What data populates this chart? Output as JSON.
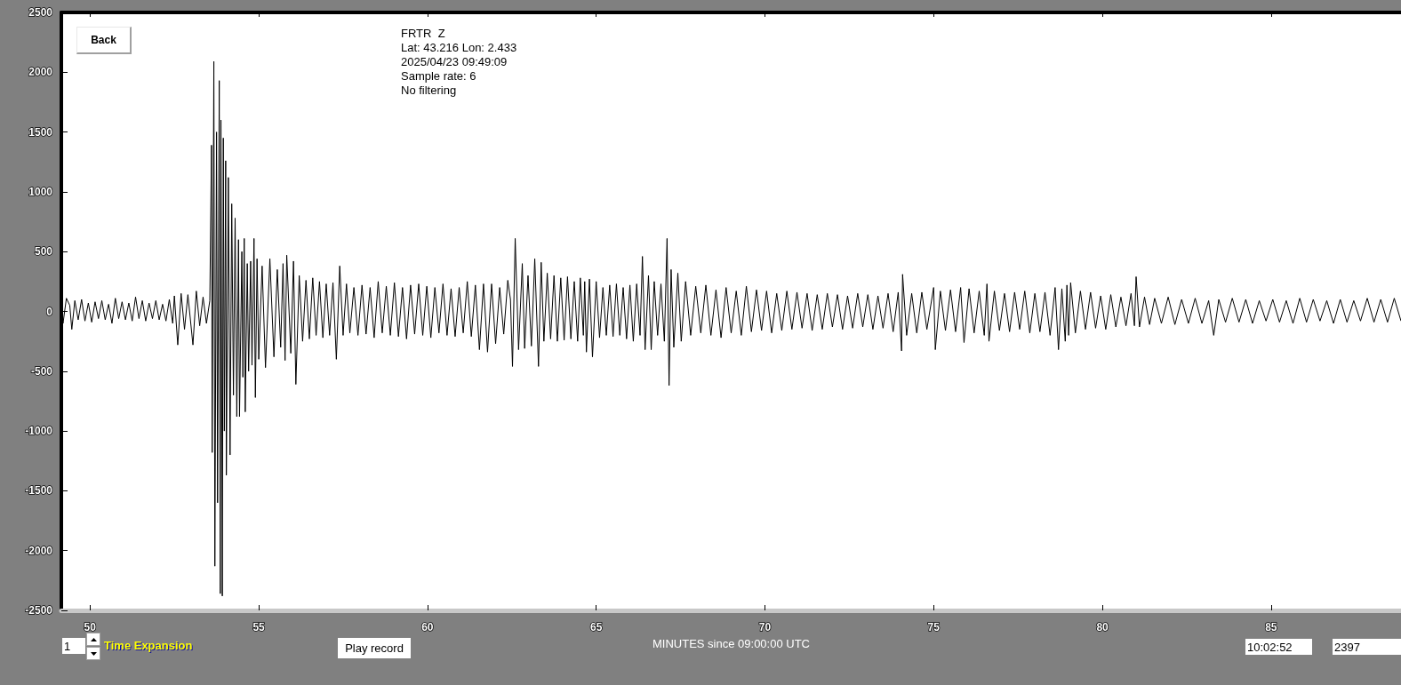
{
  "chart_data": {
    "type": "line",
    "title": "FRTR  Z",
    "xlabel": "MINUTES since 09:00:00 UTC",
    "annotations": [
      "Lat: 43.216 Lon: 2.433",
      "2025/04/23 09:49:09",
      "Sample rate: 6",
      "No filtering",
      "Back",
      "1",
      "Time Expansion",
      "Play record",
      "10:02:52",
      "2397"
    ],
    "color": "#000000",
    "xlim": [
      49.15,
      88.85
    ],
    "ylim": [
      -2500,
      2500
    ],
    "xticks": [
      50,
      55,
      60,
      65,
      70,
      75,
      80,
      85
    ],
    "yticks": [
      -2500,
      -2000,
      -1500,
      -1000,
      -500,
      0,
      500,
      1000,
      1500,
      2000,
      2500
    ],
    "x": [
      49.15,
      49.2,
      49.3,
      49.4,
      49.46,
      49.55,
      49.65,
      49.75,
      49.85,
      49.95,
      50.05,
      50.15,
      50.25,
      50.35,
      50.45,
      50.55,
      50.65,
      50.75,
      50.85,
      50.95,
      51.05,
      51.15,
      51.25,
      51.35,
      51.45,
      51.55,
      51.65,
      51.75,
      51.85,
      51.95,
      52.05,
      52.15,
      52.25,
      52.35,
      52.45,
      52.5,
      52.6,
      52.7,
      52.8,
      52.9,
      53.05,
      53.15,
      53.25,
      53.35,
      53.45,
      53.55,
      53.6,
      53.62,
      53.67,
      53.7,
      53.75,
      53.78,
      53.83,
      53.86,
      53.88,
      53.92,
      53.95,
      53.98,
      54.02,
      54.04,
      54.1,
      54.15,
      54.2,
      54.25,
      54.3,
      54.35,
      54.4,
      54.43,
      54.5,
      54.53,
      54.57,
      54.6,
      54.66,
      54.7,
      54.76,
      54.8,
      54.86,
      54.9,
      54.95,
      55.0,
      55.1,
      55.2,
      55.33,
      55.45,
      55.55,
      55.65,
      55.72,
      55.78,
      55.83,
      55.95,
      56.03,
      56.1,
      56.2,
      56.3,
      56.4,
      56.5,
      56.6,
      56.7,
      56.8,
      56.9,
      57.0,
      57.1,
      57.2,
      57.3,
      57.4,
      57.5,
      57.6,
      57.7,
      57.82,
      57.94,
      58.06,
      58.18,
      58.3,
      58.42,
      58.54,
      58.66,
      58.78,
      58.9,
      59.02,
      59.14,
      59.26,
      59.38,
      59.5,
      59.62,
      59.74,
      59.86,
      59.98,
      60.1,
      60.22,
      60.34,
      60.46,
      60.58,
      60.7,
      60.82,
      60.94,
      61.06,
      61.18,
      61.3,
      61.42,
      61.54,
      61.66,
      61.78,
      61.9,
      62.02,
      62.14,
      62.26,
      62.38,
      62.46,
      62.52,
      62.6,
      62.7,
      62.81,
      62.88,
      62.98,
      63.08,
      63.18,
      63.29,
      63.37,
      63.45,
      63.55,
      63.65,
      63.75,
      63.85,
      63.95,
      64.05,
      64.15,
      64.25,
      64.35,
      64.45,
      64.53,
      64.62,
      64.66,
      64.71,
      64.8,
      64.89,
      65.0,
      65.1,
      65.2,
      65.3,
      65.4,
      65.5,
      65.6,
      65.7,
      65.8,
      65.9,
      66.0,
      66.1,
      66.2,
      66.3,
      66.37,
      66.45,
      66.55,
      66.63,
      66.72,
      66.82,
      66.92,
      67.02,
      67.1,
      67.16,
      67.22,
      67.3,
      67.42,
      67.52,
      67.65,
      67.8,
      67.95,
      68.1,
      68.25,
      68.4,
      68.55,
      68.7,
      68.85,
      69.0,
      69.15,
      69.3,
      69.45,
      69.6,
      69.75,
      69.9,
      70.05,
      70.2,
      70.35,
      70.5,
      70.65,
      70.8,
      70.95,
      71.1,
      71.25,
      71.4,
      71.55,
      71.7,
      71.85,
      72.0,
      72.15,
      72.3,
      72.45,
      72.6,
      72.75,
      72.9,
      73.05,
      73.2,
      73.35,
      73.5,
      73.65,
      73.8,
      73.95,
      74.05,
      74.08,
      74.2,
      74.35,
      74.5,
      74.65,
      74.8,
      75.0,
      75.05,
      75.2,
      75.35,
      75.5,
      75.65,
      75.8,
      75.9,
      76.05,
      76.2,
      76.35,
      76.5,
      76.58,
      76.64,
      76.8,
      76.95,
      77.1,
      77.25,
      77.4,
      77.55,
      77.7,
      77.85,
      78.0,
      78.15,
      78.3,
      78.45,
      78.6,
      78.7,
      78.8,
      78.9,
      78.95,
      79.0,
      79.06,
      79.2,
      79.35,
      79.5,
      79.65,
      79.8,
      79.95,
      80.1,
      80.25,
      80.4,
      80.55,
      80.7,
      80.85,
      80.95,
      81.0,
      81.1,
      81.25,
      81.4,
      81.55,
      81.75,
      81.95,
      82.15,
      82.35,
      82.55,
      82.75,
      82.95,
      83.15,
      83.3,
      83.45,
      83.65,
      83.85,
      84.05,
      84.25,
      84.45,
      84.65,
      84.85,
      85.05,
      85.25,
      85.45,
      85.65,
      85.85,
      86.05,
      86.25,
      86.45,
      86.65,
      86.85,
      87.05,
      87.25,
      87.45,
      87.65,
      87.85,
      88.05,
      88.25,
      88.45,
      88.65,
      88.85
    ],
    "values": [
      60,
      -100,
      110,
      50,
      -150,
      90,
      -70,
      100,
      -80,
      70,
      -90,
      80,
      -60,
      90,
      -70,
      60,
      -100,
      110,
      -60,
      80,
      -70,
      70,
      -80,
      120,
      -60,
      90,
      -80,
      70,
      -60,
      90,
      -70,
      60,
      -80,
      100,
      -100,
      130,
      -280,
      150,
      -150,
      140,
      -280,
      170,
      -120,
      120,
      -100,
      90,
      1390,
      -1180,
      2090,
      -2130,
      1500,
      -1600,
      1930,
      -2360,
      1600,
      -2380,
      1450,
      -1000,
      1260,
      -1370,
      1120,
      -1200,
      900,
      -700,
      780,
      -880,
      600,
      -880,
      500,
      -550,
      610,
      -840,
      400,
      -500,
      420,
      -450,
      610,
      -720,
      440,
      -400,
      380,
      -470,
      440,
      -380,
      350,
      -300,
      400,
      -410,
      470,
      -350,
      420,
      -610,
      300,
      -250,
      260,
      -230,
      280,
      -200,
      250,
      -220,
      230,
      -200,
      240,
      -400,
      380,
      -200,
      230,
      -180,
      200,
      -200,
      220,
      -190,
      200,
      -220,
      250,
      -180,
      210,
      -200,
      240,
      -210,
      200,
      -230,
      220,
      -190,
      230,
      -200,
      210,
      -220,
      200,
      -180,
      230,
      -200,
      190,
      -210,
      200,
      -180,
      250,
      -210,
      220,
      -320,
      230,
      -340,
      230,
      -270,
      200,
      -190,
      260,
      100,
      -460,
      610,
      -320,
      400,
      -310,
      300,
      -290,
      440,
      -460,
      410,
      -250,
      320,
      -230,
      300,
      -250,
      280,
      -240,
      290,
      -230,
      250,
      -250,
      280,
      -200,
      250,
      -340,
      270,
      -380,
      250,
      -220,
      200,
      -200,
      220,
      -210,
      230,
      -200,
      200,
      -230,
      220,
      -250,
      230,
      -200,
      460,
      -320,
      300,
      -320,
      250,
      -200,
      230,
      -250,
      610,
      -620,
      350,
      -300,
      320,
      -250,
      250,
      -200,
      210,
      -180,
      220,
      -200,
      180,
      -220,
      200,
      -180,
      170,
      -200,
      210,
      -170,
      180,
      -160,
      170,
      -180,
      150,
      -160,
      170,
      -150,
      160,
      -140,
      150,
      -160,
      140,
      -150,
      150,
      -130,
      140,
      -150,
      130,
      -140,
      150,
      -130,
      140,
      -150,
      130,
      -140,
      150,
      -170,
      160,
      -330,
      310,
      -200,
      150,
      -180,
      160,
      -150,
      200,
      -320,
      170,
      -160,
      180,
      -170,
      200,
      -260,
      190,
      -180,
      170,
      -200,
      230,
      -250,
      170,
      -160,
      150,
      -170,
      160,
      -150,
      170,
      -180,
      150,
      -170,
      160,
      -200,
      200,
      -320,
      190,
      -250,
      220,
      -200,
      240,
      -180,
      170,
      -150,
      160,
      -140,
      130,
      -150,
      140,
      -130,
      120,
      -120,
      150,
      -120,
      290,
      -130,
      120,
      -110,
      110,
      -100,
      120,
      -110,
      100,
      -100,
      110,
      -100,
      90,
      -200,
      100,
      -90,
      110,
      -90,
      100,
      -100,
      90,
      -80,
      100,
      -90,
      90,
      -100,
      110,
      -90,
      100,
      -80,
      90,
      -100,
      100,
      -90,
      90,
      -80,
      110,
      -90,
      100,
      -90,
      110,
      -80
    ]
  }
}
